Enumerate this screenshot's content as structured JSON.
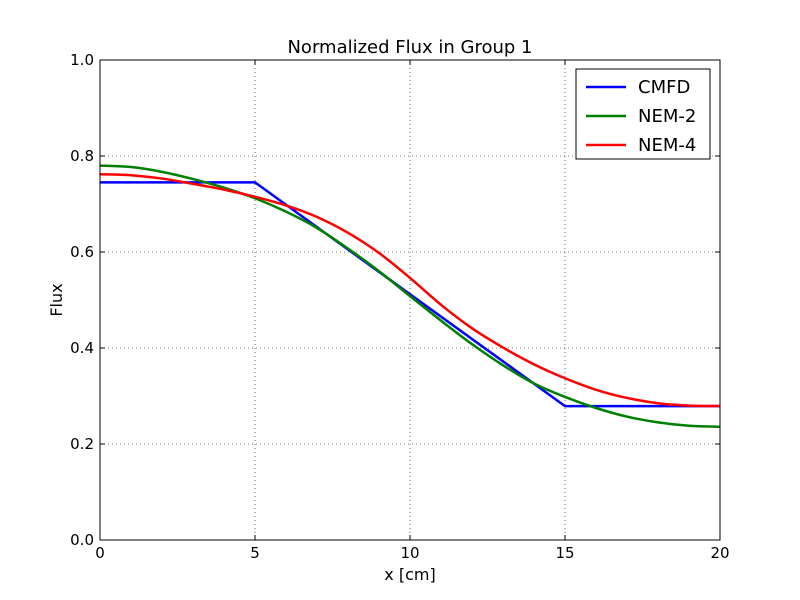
{
  "chart_data": {
    "type": "line",
    "title": "Normalized Flux in Group 1",
    "xlabel": "x [cm]",
    "ylabel": "Flux",
    "xlim": [
      0,
      20
    ],
    "ylim": [
      0.0,
      1.0
    ],
    "xticks": [
      0,
      5,
      10,
      15,
      20
    ],
    "xtick_labels": [
      "0",
      "5",
      "10",
      "15",
      "20"
    ],
    "yticks": [
      0.0,
      0.2,
      0.4,
      0.6,
      0.8,
      1.0
    ],
    "ytick_labels": [
      "0.0",
      "0.2",
      "0.4",
      "0.6",
      "0.8",
      "1.0"
    ],
    "grid": true,
    "legend_position": "top-right",
    "series": [
      {
        "name": "CMFD",
        "color": "#0000ff",
        "x": [
          0,
          5,
          15,
          20
        ],
        "y": [
          0.745,
          0.745,
          0.279,
          0.279
        ]
      },
      {
        "name": "NEM-2",
        "color": "#008000",
        "x": [
          0,
          1,
          2,
          3,
          4,
          5,
          6,
          7,
          8,
          9,
          10,
          11,
          12,
          13,
          14,
          15,
          16,
          17,
          18,
          19,
          20
        ],
        "y": [
          0.78,
          0.777,
          0.767,
          0.752,
          0.734,
          0.712,
          0.684,
          0.65,
          0.607,
          0.56,
          0.508,
          0.457,
          0.408,
          0.364,
          0.326,
          0.298,
          0.275,
          0.257,
          0.245,
          0.238,
          0.236
        ]
      },
      {
        "name": "NEM-4",
        "color": "#ff0000",
        "x": [
          0,
          1,
          2,
          3,
          4,
          5,
          6,
          7,
          8,
          9,
          10,
          11,
          12,
          13,
          14,
          15,
          16,
          17,
          18,
          19,
          20
        ],
        "y": [
          0.762,
          0.76,
          0.753,
          0.742,
          0.73,
          0.715,
          0.697,
          0.673,
          0.64,
          0.598,
          0.546,
          0.49,
          0.441,
          0.401,
          0.366,
          0.337,
          0.313,
          0.296,
          0.285,
          0.28,
          0.279
        ]
      }
    ]
  }
}
